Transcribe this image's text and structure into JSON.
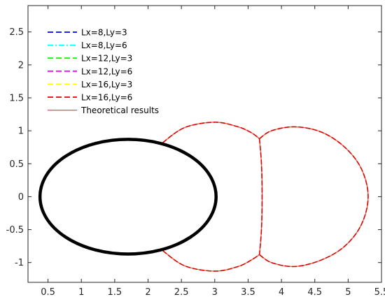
{
  "chart_data": {
    "type": "line",
    "title": "",
    "xlabel": "",
    "ylabel": "",
    "xlim": [
      0.2,
      5.5
    ],
    "ylim": [
      -1.3,
      2.9
    ],
    "grid": false,
    "legend_position": "top-left",
    "x_ticks": [
      {
        "value": 0.5,
        "label": "0.5"
      },
      {
        "value": 1,
        "label": "1"
      },
      {
        "value": 1.5,
        "label": "1.5"
      },
      {
        "value": 2,
        "label": "2"
      },
      {
        "value": 2.5,
        "label": "2.5"
      },
      {
        "value": 3,
        "label": "3"
      },
      {
        "value": 3.5,
        "label": "3.5"
      },
      {
        "value": 4,
        "label": "4"
      },
      {
        "value": 4.5,
        "label": "4.5"
      },
      {
        "value": 5,
        "label": "5"
      },
      {
        "value": 5.5,
        "label": "5.5"
      }
    ],
    "y_ticks": [
      {
        "value": 2.5,
        "label": "2.5"
      },
      {
        "value": 2,
        "label": "2"
      },
      {
        "value": 1.5,
        "label": "1.5"
      },
      {
        "value": 1,
        "label": "1"
      },
      {
        "value": 0.5,
        "label": "0.5"
      },
      {
        "value": 0,
        "label": "0"
      },
      {
        "value": -0.5,
        "label": "-0.5"
      },
      {
        "value": -1,
        "label": "-1"
      }
    ],
    "series": [
      {
        "name": "Lx=8,Ly=3",
        "color": "#0000ff",
        "dash": "dashed"
      },
      {
        "name": "Lx=8,Ly=6",
        "color": "#00ffff",
        "dash": "dash-dot"
      },
      {
        "name": "Lx=12,Ly=3",
        "color": "#00ff00",
        "dash": "dashed"
      },
      {
        "name": "Lx=12,Ly=6",
        "color": "#ff00ff",
        "dash": "dashed"
      },
      {
        "name": "Lx=16,Ly=3",
        "color": "#ffff00",
        "dash": "dashed"
      },
      {
        "name": "Lx=16,Ly=6",
        "color": "#dd0000",
        "dash": "dashed"
      },
      {
        "name": "Theoretical results",
        "color": "#f05030",
        "dash": "solid"
      }
    ],
    "obstacle": {
      "shape": "ellipse",
      "center": [
        1.7,
        0
      ],
      "semi_axes": [
        1.32,
        0.87
      ],
      "color": "#000000"
    },
    "curves": {
      "upper_arc": [
        [
          2.22,
          0.82
        ],
        [
          2.55,
          1.05
        ],
        [
          3.0,
          1.13
        ],
        [
          3.35,
          1.06
        ],
        [
          3.55,
          0.97
        ],
        [
          3.67,
          0.88
        ]
      ],
      "lower_arc": [
        [
          2.22,
          -0.82
        ],
        [
          2.55,
          -1.05
        ],
        [
          3.0,
          -1.13
        ],
        [
          3.35,
          -1.06
        ],
        [
          3.55,
          -0.96
        ],
        [
          3.67,
          -0.88
        ]
      ],
      "interface": [
        [
          3.67,
          0.88
        ],
        [
          3.7,
          0.5
        ],
        [
          3.71,
          0.0
        ],
        [
          3.7,
          -0.5
        ],
        [
          3.67,
          -0.88
        ]
      ],
      "right_lobe": [
        [
          3.67,
          0.88
        ],
        [
          3.85,
          1.0
        ],
        [
          4.2,
          1.06
        ],
        [
          4.6,
          0.98
        ],
        [
          4.95,
          0.75
        ],
        [
          5.2,
          0.42
        ],
        [
          5.3,
          0.0
        ],
        [
          5.2,
          -0.42
        ],
        [
          4.95,
          -0.75
        ],
        [
          4.6,
          -0.96
        ],
        [
          4.2,
          -1.06
        ],
        [
          3.85,
          -1.0
        ],
        [
          3.67,
          -0.88
        ]
      ]
    }
  }
}
